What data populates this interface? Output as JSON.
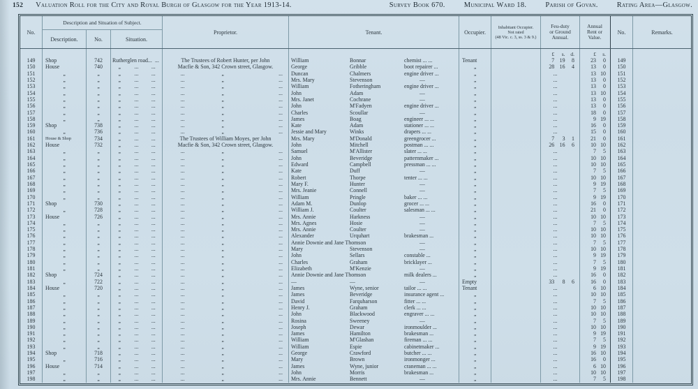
{
  "page_header": {
    "page_number": "152",
    "title": "Valuation Roll for the City and Royal Burgh of Glasgow for the Year 1913-14.",
    "survey_book": "Survey Book 670.",
    "ward": "Municipal Ward 18.",
    "parish": "Parish of Govan.",
    "rating_area": "Rating Area—Glasgow."
  },
  "table": {
    "headers": {
      "no_left": "No.",
      "group": "Description and Situation of Subject.",
      "description": "Description.",
      "number": "No.",
      "situation": "Situation.",
      "proprietor": "Proprietor.",
      "tenant": "Tenant.",
      "occupier": "Occupier.",
      "inhabitant_line1": "Inhabitant Occupier.",
      "inhabitant_line2": "Not rated",
      "inhabitant_line3": "(48 Vic. c. 3, ss. 3 & 9.)",
      "feu_line1": "Feu-duty",
      "feu_line2": "or Ground",
      "feu_line3": "Annual.",
      "rent_line1": "Annual",
      "rent_line2": "Rent or",
      "rent_line3": "Value.",
      "no_right": "No.",
      "remarks": "Remarks."
    },
    "units": {
      "feu": [
        "£",
        "s.",
        "d."
      ],
      "rent": [
        "£",
        "s."
      ]
    },
    "rows": [
      {
        "n": "149",
        "d": "Shop",
        "sn": "742",
        "sit": [
          "Rutherglen road...",
          "..."
        ],
        "p": [
          "The Trustees of Robert Hunter, per John"
        ],
        "tf": "William",
        "tl": "Bonnar",
        "oc": "chemist ... ...",
        "occ": "Tenant",
        "f": "7 19 8",
        "r": "23 0"
      },
      {
        "n": "150",
        "d": "House",
        "sn": "740",
        "sit": [
          ",,",
          "...",
          "..."
        ],
        "p": [
          "Macfie & Son, 342 Crown street, Glasgow."
        ],
        "tf": "George",
        "tl": "Gribble",
        "oc": "boot repairer ...",
        "occ": ",,",
        "f": "28 16 4",
        "r": "13 0"
      },
      {
        "n": "151",
        "d": ",,",
        "sn": ",,",
        "sit": [
          ",,",
          "...",
          "..."
        ],
        "p": [
          "...",
          ",,",
          "..."
        ],
        "tf": "Duncan",
        "tl": "Chalmers",
        "oc": "engine driver ...",
        "occ": ",,",
        "f": "...",
        "r": "13 10"
      },
      {
        "n": "152",
        "d": ",,",
        "sn": ",,",
        "sit": [
          ",,",
          "...",
          "..."
        ],
        "p": [
          "...",
          ",,",
          "..."
        ],
        "tf": "Mrs. Mary",
        "tl": "Stevenson",
        "oc": "—",
        "occ": ",,",
        "f": "...",
        "r": "13 0"
      },
      {
        "n": "153",
        "d": ",,",
        "sn": ",,",
        "sit": [
          ",,",
          "...",
          "..."
        ],
        "p": [
          "...",
          ",,",
          "..."
        ],
        "tf": "William",
        "tl": "Fotheringham",
        "oc": "engine driver ...",
        "occ": ",,",
        "f": "...",
        "r": "13 0"
      },
      {
        "n": "154",
        "d": ",,",
        "sn": ",,",
        "sit": [
          ",,",
          "...",
          "..."
        ],
        "p": [
          "...",
          ",,",
          "..."
        ],
        "tf": "John",
        "tl": "Adam",
        "oc": "—",
        "occ": ",,",
        "f": "...",
        "r": "13 10"
      },
      {
        "n": "155",
        "d": ",,",
        "sn": ",,",
        "sit": [
          ",,",
          "...",
          "..."
        ],
        "p": [
          "...",
          ",,",
          "..."
        ],
        "tf": "Mrs. Janet",
        "tl": "Cochrane",
        "oc": "—",
        "occ": ",,",
        "f": "...",
        "r": "13 0"
      },
      {
        "n": "156",
        "d": ",,",
        "sn": ",,",
        "sit": [
          ",,",
          "...",
          "..."
        ],
        "p": [
          "...",
          ",,",
          "..."
        ],
        "tf": "John",
        "tl": "M'Fadyen",
        "oc": "engine driver ...",
        "occ": ",,",
        "f": "...",
        "r": "13 0"
      },
      {
        "n": "157",
        "d": ",,",
        "sn": ",,",
        "sit": [
          ",,",
          "...",
          "..."
        ],
        "p": [
          "...",
          ",,",
          "..."
        ],
        "tf": "Charles",
        "tl": "Scoullar",
        "oc": "—",
        "occ": ",,",
        "f": "...",
        "r": "18 0"
      },
      {
        "n": "158",
        "d": ",,",
        "sn": ",,",
        "sit": [
          ",,",
          "...",
          "..."
        ],
        "p": [
          "...",
          ",,",
          "..."
        ],
        "tf": "James",
        "tl": "Boag",
        "oc": "engineer ... ...",
        "occ": ",,",
        "f": "...",
        "r": "9 19"
      },
      {
        "n": "159",
        "d": "Shop",
        "sn": "738",
        "sit": [
          ",,",
          "...",
          "..."
        ],
        "p": [
          "...",
          ",,",
          "..."
        ],
        "tf": "Kate",
        "tl": "Adam",
        "oc": "stationer ... ...",
        "occ": ",,",
        "f": "...",
        "r": "16 0"
      },
      {
        "n": "160",
        "d": ",,",
        "sn": "736",
        "sit": [
          ",,",
          "...",
          "..."
        ],
        "p": [
          "...",
          ",,",
          "..."
        ],
        "tf": "Jessie and Mary",
        "tl": "Winks",
        "oc": "drapers ... ...",
        "occ": ",,",
        "f": "...",
        "r": "15 0"
      },
      {
        "n": "161",
        "d": "House & Shop",
        "sn": "734",
        "sit": [
          ",,",
          "...",
          "..."
        ],
        "p": [
          "The Trustees of William Moyes, per John"
        ],
        "tf": "Mrs. Mary",
        "tl": "M'Donald",
        "oc": "greengrocer ...",
        "occ": ",,",
        "f": "7 3 1",
        "r": "21 0"
      },
      {
        "n": "162",
        "d": "House",
        "sn": "732",
        "sit": [
          ",,",
          "...",
          "..."
        ],
        "p": [
          "Macfie & Son, 342 Crown street, Glasgow."
        ],
        "tf": "John",
        "tl": "Mitchell",
        "oc": "postman ... ...",
        "occ": ",,",
        "f": "26 16 6",
        "r": "10 10"
      },
      {
        "n": "163",
        "d": ",,",
        "sn": ",,",
        "sit": [
          ",,",
          "...",
          "..."
        ],
        "p": [
          "...",
          ",,",
          "..."
        ],
        "tf": "Samuel",
        "tl": "M'Allister",
        "oc": "slater ... ...",
        "occ": ",,",
        "f": "...",
        "r": "7 5"
      },
      {
        "n": "164",
        "d": ",,",
        "sn": ",,",
        "sit": [
          ",,",
          "...",
          "..."
        ],
        "p": [
          "...",
          ",,",
          "..."
        ],
        "tf": "John",
        "tl": "Beveridge",
        "oc": "patternmaker ...",
        "occ": ",,",
        "f": "...",
        "r": "10 10"
      },
      {
        "n": "165",
        "d": ",,",
        "sn": ",,",
        "sit": [
          ",,",
          "...",
          "..."
        ],
        "p": [
          "...",
          ",,",
          "..."
        ],
        "tf": "Edward",
        "tl": "Campbell",
        "oc": "pressman ... ...",
        "occ": ",,",
        "f": "...",
        "r": "10 10"
      },
      {
        "n": "166",
        "d": ",,",
        "sn": ",,",
        "sit": [
          ",,",
          "...",
          "..."
        ],
        "p": [
          "...",
          ",,",
          "..."
        ],
        "tf": "Kate",
        "tl": "Duff",
        "oc": "—",
        "occ": ",,",
        "f": "...",
        "r": "7 5"
      },
      {
        "n": "167",
        "d": ",,",
        "sn": ",,",
        "sit": [
          ",,",
          "...",
          "..."
        ],
        "p": [
          "...",
          ",,",
          "..."
        ],
        "tf": "Robert",
        "tl": "Thorpe",
        "oc": "tenter ... ...",
        "occ": ",,",
        "f": "...",
        "r": "10 10"
      },
      {
        "n": "168",
        "d": ",,",
        "sn": ",,",
        "sit": [
          ",,",
          "...",
          "..."
        ],
        "p": [
          "...",
          ",,",
          "..."
        ],
        "tf": "Mary F.",
        "tl": "Hunter",
        "oc": "—",
        "occ": ",,",
        "f": "...",
        "r": "9 19"
      },
      {
        "n": "169",
        "d": ",,",
        "sn": ",,",
        "sit": [
          ",,",
          "...",
          "..."
        ],
        "p": [
          "...",
          ",,",
          "..."
        ],
        "tf": "Mrs. Jeanie",
        "tl": "Connell",
        "oc": "—",
        "occ": ",,",
        "f": "...",
        "r": "7 5"
      },
      {
        "n": "170",
        "d": ",,",
        "sn": ",,",
        "sit": [
          ",,",
          "...",
          "..."
        ],
        "p": [
          "...",
          ",,",
          "..."
        ],
        "tf": "William",
        "tl": "Pringle",
        "oc": "baker ... ...",
        "occ": ",,",
        "f": "...",
        "r": "9 19"
      },
      {
        "n": "171",
        "d": "Shop",
        "sn": "730",
        "sit": [
          ",,",
          "...",
          "..."
        ],
        "p": [
          "...",
          ",,",
          "..."
        ],
        "tf": "Adam M.",
        "tl": "Dunlop",
        "oc": "grocer ... ...",
        "occ": ",,",
        "f": "...",
        "r": "16 0"
      },
      {
        "n": "172",
        "d": ",,",
        "sn": "728",
        "sit": [
          ",,",
          "...",
          "..."
        ],
        "p": [
          "...",
          ",,",
          "..."
        ],
        "tf": "William J.",
        "tl": "Coulter",
        "oc": "salesman ... ...",
        "occ": ",,",
        "f": "...",
        "r": "21 0"
      },
      {
        "n": "173",
        "d": "House",
        "sn": "726",
        "sit": [
          ",,",
          "...",
          "..."
        ],
        "p": [
          "...",
          ",,",
          "..."
        ],
        "tf": "Mrs. Annie",
        "tl": "Harkness",
        "oc": "—",
        "occ": ",,",
        "f": "...",
        "r": "10 10"
      },
      {
        "n": "174",
        "d": ",,",
        "sn": ",,",
        "sit": [
          ",,",
          "...",
          "..."
        ],
        "p": [
          "...",
          ",,",
          "..."
        ],
        "tf": "Mrs. Agnes",
        "tl": "Hosie",
        "oc": "—",
        "occ": ",,",
        "f": "...",
        "r": "7 5"
      },
      {
        "n": "175",
        "d": ",,",
        "sn": ",,",
        "sit": [
          ",,",
          "...",
          "..."
        ],
        "p": [
          "...",
          ",,",
          "..."
        ],
        "tf": "Mrs. Annie",
        "tl": "Coulter",
        "oc": "—",
        "occ": ",,",
        "f": "...",
        "r": "10 10"
      },
      {
        "n": "176",
        "d": ",,",
        "sn": ",,",
        "sit": [
          ",,",
          "...",
          "..."
        ],
        "p": [
          "...",
          ",,",
          "..."
        ],
        "tf": "Alexander",
        "tl": "Urquhart",
        "oc": "brakesman ...",
        "occ": ",,",
        "f": "...",
        "r": "10 10"
      },
      {
        "n": "177",
        "d": ",,",
        "sn": ",,",
        "sit": [
          ",,",
          "...",
          "..."
        ],
        "p": [
          "...",
          ",,",
          "..."
        ],
        "tf": "Annie Downie and Jane Thomson",
        "tl": "",
        "oc": "—",
        "occ": ",,",
        "f": "...",
        "r": "7 5"
      },
      {
        "n": "178",
        "d": ",,",
        "sn": ",,",
        "sit": [
          ",,",
          "...",
          "..."
        ],
        "p": [
          "...",
          ",,",
          "..."
        ],
        "tf": "Mary",
        "tl": "Stevenson",
        "oc": "—",
        "occ": ",,",
        "f": "...",
        "r": "10 10"
      },
      {
        "n": "179",
        "d": ",,",
        "sn": ",,",
        "sit": [
          ",,",
          "...",
          "..."
        ],
        "p": [
          "...",
          ",,",
          "..."
        ],
        "tf": "John",
        "tl": "Sellars",
        "oc": "constable ...",
        "occ": ",,",
        "f": "...",
        "r": "9 19"
      },
      {
        "n": "180",
        "d": ",,",
        "sn": ",,",
        "sit": [
          ",,",
          "...",
          "..."
        ],
        "p": [
          "...",
          ",,",
          "..."
        ],
        "tf": "Charles",
        "tl": "Graham",
        "oc": "bricklayer ...",
        "occ": ",,",
        "f": "...",
        "r": "7 5"
      },
      {
        "n": "181",
        "d": ",,",
        "sn": ",,",
        "sit": [
          ",,",
          "...",
          "..."
        ],
        "p": [
          "...",
          ",,",
          "..."
        ],
        "tf": "Elizabeth",
        "tl": "M'Kenzie",
        "oc": "—",
        "occ": ",,",
        "f": "...",
        "r": "9 19"
      },
      {
        "n": "182",
        "d": "Shop",
        "sn": "724",
        "sit": [
          ",,",
          "...",
          "..."
        ],
        "p": [
          "...",
          ",,",
          "..."
        ],
        "tf": "Annie Downie and Jane Thomson",
        "tl": "",
        "oc": "milk dealers ...",
        "occ": ",,",
        "f": "...",
        "r": "16 0"
      },
      {
        "n": "183",
        "d": ",,",
        "sn": "722",
        "sit": [
          ",,",
          "...",
          "..."
        ],
        "p": [
          "...",
          ",,",
          "..."
        ],
        "tf": "—",
        "tl": "—",
        "oc": "—",
        "occ": "Empty",
        "f": "33 8 6",
        "r": "16 0"
      },
      {
        "n": "184",
        "d": "House",
        "sn": "720",
        "sit": [
          ",,",
          "...",
          "..."
        ],
        "p": [
          "...",
          ",,",
          "..."
        ],
        "tf": "James",
        "tl": "Wyne, senior",
        "oc": "tailor ... ...",
        "occ": "Tenant",
        "f": "...",
        "r": "6 10"
      },
      {
        "n": "185",
        "d": ",,",
        "sn": ",,",
        "sit": [
          ",,",
          "...",
          "..."
        ],
        "p": [
          "...",
          ",,",
          "..."
        ],
        "tf": "James",
        "tl": "Beveridge",
        "oc": "insurance agent ...",
        "occ": ",,",
        "f": "...",
        "r": "10 10"
      },
      {
        "n": "186",
        "d": ",,",
        "sn": ",,",
        "sit": [
          ",,",
          "...",
          "..."
        ],
        "p": [
          "...",
          ",,",
          "..."
        ],
        "tf": "David",
        "tl": "Farquharson",
        "oc": "fitter ... ...",
        "occ": ",,",
        "f": "...",
        "r": "7 5"
      },
      {
        "n": "187",
        "d": ",,",
        "sn": ",,",
        "sit": [
          ",,",
          "...",
          "..."
        ],
        "p": [
          "...",
          ",,",
          "..."
        ],
        "tf": "Henry J.",
        "tl": "Graham",
        "oc": "clerk ... ...",
        "occ": ",,",
        "f": "...",
        "r": "10 10"
      },
      {
        "n": "188",
        "d": ",,",
        "sn": ",,",
        "sit": [
          ",,",
          "...",
          "..."
        ],
        "p": [
          "...",
          ",,",
          "..."
        ],
        "tf": "John",
        "tl": "Blackwood",
        "oc": "engraver ... ...",
        "occ": ",,",
        "f": "...",
        "r": "10 10"
      },
      {
        "n": "189",
        "d": ",,",
        "sn": ",,",
        "sit": [
          ",,",
          "...",
          "..."
        ],
        "p": [
          "...",
          ",,",
          "..."
        ],
        "tf": "Rosina",
        "tl": "Sweeney",
        "oc": "—",
        "occ": ",,",
        "f": "...",
        "r": "7 5"
      },
      {
        "n": "190",
        "d": ",,",
        "sn": ",,",
        "sit": [
          ",,",
          "...",
          "..."
        ],
        "p": [
          "...",
          ",,",
          "..."
        ],
        "tf": "Joseph",
        "tl": "Dewar",
        "oc": "ironmoulder ...",
        "occ": ",,",
        "f": "...",
        "r": "10 10"
      },
      {
        "n": "191",
        "d": ",,",
        "sn": ",,",
        "sit": [
          ",,",
          "...",
          "..."
        ],
        "p": [
          "...",
          ",,",
          "..."
        ],
        "tf": "James",
        "tl": "Hamilton",
        "oc": "brakesman ...",
        "occ": ",,",
        "f": "...",
        "r": "9 19"
      },
      {
        "n": "192",
        "d": ",,",
        "sn": ",,",
        "sit": [
          ",,",
          "...",
          "..."
        ],
        "p": [
          "...",
          ",,",
          "..."
        ],
        "tf": "William",
        "tl": "M'Glashan",
        "oc": "fireman ... ...",
        "occ": ",,",
        "f": "...",
        "r": "7 5"
      },
      {
        "n": "193",
        "d": ",,",
        "sn": ",,",
        "sit": [
          ",,",
          "...",
          "..."
        ],
        "p": [
          "...",
          ",,",
          "..."
        ],
        "tf": "William",
        "tl": "Espie",
        "oc": "cabinetmaker ...",
        "occ": ",,",
        "f": "...",
        "r": "9 19"
      },
      {
        "n": "194",
        "d": "Shop",
        "sn": "718",
        "sit": [
          ",,",
          "...",
          "..."
        ],
        "p": [
          "...",
          ",,",
          "..."
        ],
        "tf": "George",
        "tl": "Crawford",
        "oc": "butcher ... ...",
        "occ": ",,",
        "f": "...",
        "r": "16 10"
      },
      {
        "n": "195",
        "d": ",,",
        "sn": "716",
        "sit": [
          ",,",
          "...",
          "..."
        ],
        "p": [
          "...",
          ",,",
          "..."
        ],
        "tf": "Mary",
        "tl": "Brown",
        "oc": "ironmonger ...",
        "occ": ",,",
        "f": "...",
        "r": "16 0"
      },
      {
        "n": "196",
        "d": "House",
        "sn": "714",
        "sit": [
          ",,",
          "...",
          "..."
        ],
        "p": [
          "...",
          ",,",
          "..."
        ],
        "tf": "James",
        "tl": "Wyne, junior",
        "oc": "craneman ... ...",
        "occ": ",,",
        "f": "...",
        "r": "6 10"
      },
      {
        "n": "197",
        "d": ",,",
        "sn": ",,",
        "sit": [
          ",,",
          "...",
          "..."
        ],
        "p": [
          "...",
          ",,",
          "..."
        ],
        "tf": "John",
        "tl": "Morris",
        "oc": "brakesman ...",
        "occ": ",,",
        "f": "...",
        "r": "10 10"
      },
      {
        "n": "198",
        "d": ",,",
        "sn": ",,",
        "sit": [
          ",,",
          "...",
          "..."
        ],
        "p": [
          "...",
          ",,",
          "..."
        ],
        "tf": "Mrs. Annie",
        "tl": "Bennett",
        "oc": "—",
        "occ": ",,",
        "f": "...",
        "r": "7 5"
      }
    ]
  }
}
